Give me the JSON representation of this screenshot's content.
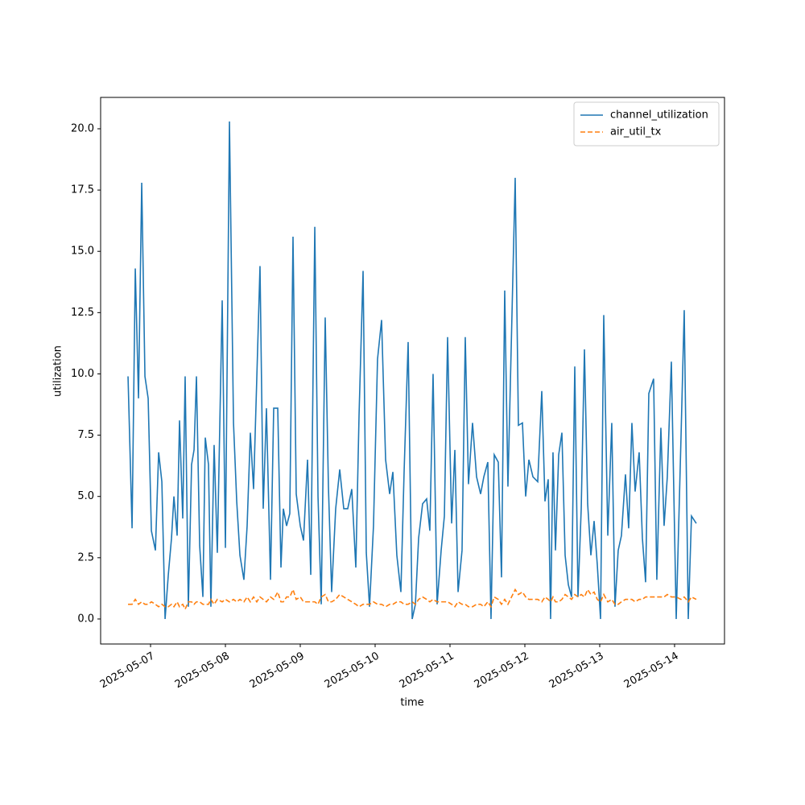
{
  "chart_data": {
    "type": "line",
    "xlabel": "time",
    "ylabel": "utilization",
    "xlim": [
      20214.333,
      20222.667
    ],
    "xticks": [
      {
        "value": 20215,
        "label": "2025-05-07"
      },
      {
        "value": 20216,
        "label": "2025-05-08"
      },
      {
        "value": 20217,
        "label": "2025-05-09"
      },
      {
        "value": 20218,
        "label": "2025-05-10"
      },
      {
        "value": 20219,
        "label": "2025-05-11"
      },
      {
        "value": 20220,
        "label": "2025-05-12"
      },
      {
        "value": 20221,
        "label": "2025-05-13"
      },
      {
        "value": 20222,
        "label": "2025-05-14"
      }
    ],
    "ylim": [
      -1.02,
      21.28
    ],
    "yticks": [
      {
        "value": 0,
        "label": "0.0"
      },
      2.5,
      {
        "value": 5,
        "label": "5.0"
      },
      7.5,
      {
        "value": 10,
        "label": "10.0"
      },
      12.5,
      {
        "value": 15,
        "label": "15.0"
      },
      17.5,
      {
        "value": 20,
        "label": "20.0"
      }
    ],
    "legend": "upper right",
    "x": [
      20214.699,
      20214.753,
      20214.796,
      20214.839,
      20214.882,
      20214.925,
      20214.968,
      20215.011,
      20215.065,
      20215.108,
      20215.151,
      20215.194,
      20215.237,
      20215.28,
      20215.312,
      20215.355,
      20215.387,
      20215.43,
      20215.462,
      20215.505,
      20215.548,
      20215.581,
      20215.613,
      20215.656,
      20215.699,
      20215.731,
      20215.774,
      20215.806,
      20215.849,
      20215.892,
      20215.957,
      20216.0,
      20216.054,
      20216.108,
      20216.151,
      20216.194,
      20216.247,
      20216.29,
      20216.333,
      20216.376,
      20216.419,
      20216.462,
      20216.505,
      20216.548,
      20216.602,
      20216.645,
      20216.699,
      20216.742,
      20216.774,
      20216.817,
      20216.86,
      20216.903,
      20216.946,
      20217.0,
      20217.043,
      20217.097,
      20217.14,
      20217.194,
      20217.237,
      20217.28,
      20217.333,
      20217.376,
      20217.419,
      20217.473,
      20217.527,
      20217.581,
      20217.634,
      20217.688,
      20217.742,
      20217.785,
      20217.839,
      20217.882,
      20217.925,
      20217.978,
      20218.032,
      20218.086,
      20218.14,
      20218.194,
      20218.237,
      20218.29,
      20218.344,
      20218.387,
      20218.441,
      20218.495,
      20218.538,
      20218.581,
      20218.634,
      20218.688,
      20218.731,
      20218.774,
      20218.828,
      20218.882,
      20218.925,
      20218.968,
      20219.022,
      20219.065,
      20219.108,
      20219.161,
      20219.204,
      20219.247,
      20219.301,
      20219.355,
      20219.409,
      20219.452,
      20219.505,
      20219.548,
      20219.591,
      20219.645,
      20219.688,
      20219.731,
      20219.774,
      20219.871,
      20219.914,
      20219.968,
      20220.011,
      20220.054,
      20220.108,
      20220.172,
      20220.226,
      20220.269,
      20220.312,
      20220.344,
      20220.376,
      20220.409,
      20220.452,
      20220.495,
      20220.538,
      20220.581,
      20220.624,
      20220.667,
      20220.71,
      20220.753,
      20220.796,
      20220.839,
      20220.882,
      20220.925,
      20220.968,
      20221.011,
      20221.054,
      20221.108,
      20221.161,
      20221.204,
      20221.247,
      20221.29,
      20221.344,
      20221.387,
      20221.43,
      20221.473,
      20221.527,
      20221.57,
      20221.613,
      20221.656,
      20221.72,
      20221.763,
      20221.817,
      20221.86,
      20221.903,
      20221.957,
      20222.022,
      20222.086,
      20222.129,
      20222.183,
      20222.226,
      20222.29
    ],
    "series": [
      {
        "name": "channel_utilization",
        "color": "#1f77b4",
        "linestyle": "solid",
        "values": [
          9.9,
          3.7,
          14.3,
          9.0,
          17.8,
          9.9,
          9.0,
          3.6,
          2.8,
          6.8,
          5.6,
          0.0,
          1.8,
          3.3,
          5.0,
          3.4,
          8.1,
          4.1,
          9.9,
          0.5,
          6.3,
          6.9,
          9.9,
          3.0,
          0.9,
          7.4,
          6.3,
          0.5,
          7.1,
          2.7,
          13.0,
          2.9,
          20.3,
          8.0,
          4.8,
          2.6,
          1.6,
          3.8,
          7.6,
          5.3,
          9.8,
          14.4,
          4.5,
          8.6,
          1.6,
          8.6,
          8.6,
          2.1,
          4.5,
          3.8,
          4.3,
          15.6,
          5.1,
          3.8,
          3.2,
          6.5,
          1.8,
          16.0,
          5.0,
          0.6,
          12.3,
          5.4,
          1.1,
          4.5,
          6.1,
          4.5,
          4.5,
          5.3,
          2.1,
          8.3,
          14.2,
          2.7,
          0.5,
          3.8,
          10.6,
          12.2,
          6.5,
          5.1,
          6.0,
          2.6,
          1.1,
          6.0,
          11.3,
          0.0,
          0.6,
          3.3,
          4.7,
          4.9,
          3.6,
          10.0,
          0.6,
          2.8,
          4.2,
          11.5,
          3.9,
          6.9,
          1.1,
          2.8,
          11.5,
          5.5,
          8.0,
          5.8,
          5.1,
          5.8,
          6.4,
          0.0,
          6.7,
          6.4,
          1.7,
          13.4,
          5.4,
          18.0,
          7.9,
          8.0,
          5.0,
          6.5,
          5.8,
          5.6,
          9.3,
          4.8,
          5.7,
          0.0,
          6.8,
          2.8,
          6.7,
          7.6,
          2.6,
          1.4,
          0.9,
          10.3,
          0.9,
          4.5,
          11.0,
          4.7,
          2.6,
          4.0,
          2.2,
          0.0,
          12.4,
          3.4,
          8.0,
          0.5,
          2.8,
          3.4,
          5.9,
          3.7,
          8.0,
          5.2,
          6.8,
          3.3,
          1.5,
          9.2,
          9.8,
          1.6,
          7.8,
          3.8,
          5.8,
          10.5,
          0.0,
          7.4,
          12.6,
          0.0,
          4.2,
          3.9
        ]
      },
      {
        "name": "air_util_tx",
        "color": "#ff7f0e",
        "linestyle": "dashed",
        "values": [
          0.6,
          0.6,
          0.8,
          0.6,
          0.7,
          0.6,
          0.6,
          0.7,
          0.6,
          0.5,
          0.6,
          0.5,
          0.5,
          0.6,
          0.5,
          0.7,
          0.5,
          0.6,
          0.4,
          0.7,
          0.7,
          0.6,
          0.7,
          0.7,
          0.6,
          0.6,
          0.6,
          0.8,
          0.6,
          0.8,
          0.7,
          0.8,
          0.7,
          0.8,
          0.7,
          0.8,
          0.7,
          0.9,
          0.7,
          0.9,
          0.7,
          0.9,
          0.8,
          0.7,
          0.9,
          0.8,
          1.1,
          0.7,
          0.7,
          0.9,
          0.9,
          1.2,
          0.8,
          0.9,
          0.7,
          0.7,
          0.7,
          0.7,
          0.6,
          0.9,
          1.0,
          0.7,
          0.7,
          0.8,
          1.0,
          0.9,
          0.8,
          0.7,
          0.6,
          0.5,
          0.6,
          0.6,
          0.6,
          0.7,
          0.6,
          0.6,
          0.5,
          0.6,
          0.6,
          0.7,
          0.7,
          0.6,
          0.6,
          0.7,
          0.6,
          0.8,
          0.9,
          0.8,
          0.7,
          0.8,
          0.7,
          0.7,
          0.7,
          0.7,
          0.6,
          0.5,
          0.7,
          0.6,
          0.6,
          0.5,
          0.5,
          0.6,
          0.6,
          0.5,
          0.7,
          0.5,
          0.9,
          0.8,
          0.6,
          0.8,
          0.6,
          1.2,
          1.0,
          1.1,
          0.9,
          0.8,
          0.8,
          0.8,
          0.7,
          0.9,
          0.8,
          0.7,
          0.9,
          0.7,
          0.7,
          0.8,
          1.0,
          0.9,
          0.8,
          1.0,
          0.9,
          1.0,
          0.9,
          1.2,
          1.0,
          1.1,
          0.8,
          0.7,
          1.0,
          0.7,
          0.8,
          0.6,
          0.6,
          0.7,
          0.8,
          0.8,
          0.8,
          0.7,
          0.8,
          0.8,
          0.9,
          0.9,
          0.9,
          0.9,
          0.9,
          0.9,
          1.0,
          0.9,
          0.9,
          0.8,
          0.9,
          0.7,
          0.9,
          0.8
        ]
      }
    ]
  }
}
